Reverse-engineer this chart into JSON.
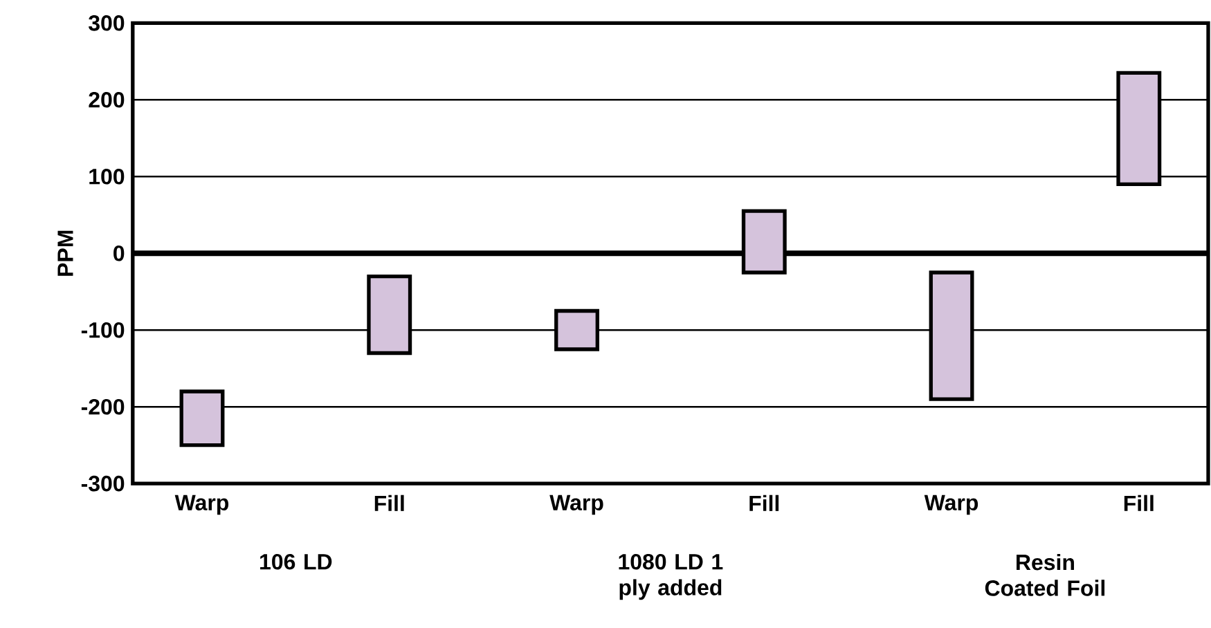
{
  "chart_data": {
    "type": "bar",
    "ylabel": "PPM",
    "categories": [
      "Warp",
      "Fill",
      "Warp",
      "Fill",
      "Warp",
      "Fill"
    ],
    "base": [
      -250,
      -130,
      -125,
      -25,
      -190,
      90
    ],
    "values": [
      70,
      100,
      50,
      80,
      165,
      145
    ],
    "color": "#d5c3dc",
    "ylim": [
      -300,
      300
    ],
    "yticks": [
      -300,
      -200,
      -100,
      0,
      100,
      200,
      300
    ],
    "grid": "y",
    "ref_lines": [
      {
        "axis": "y",
        "value": 0,
        "color": "#000000"
      }
    ],
    "annotations": [
      "106 LD",
      "1080 LD 1 ply added",
      "Resin Coated Foil"
    ]
  }
}
